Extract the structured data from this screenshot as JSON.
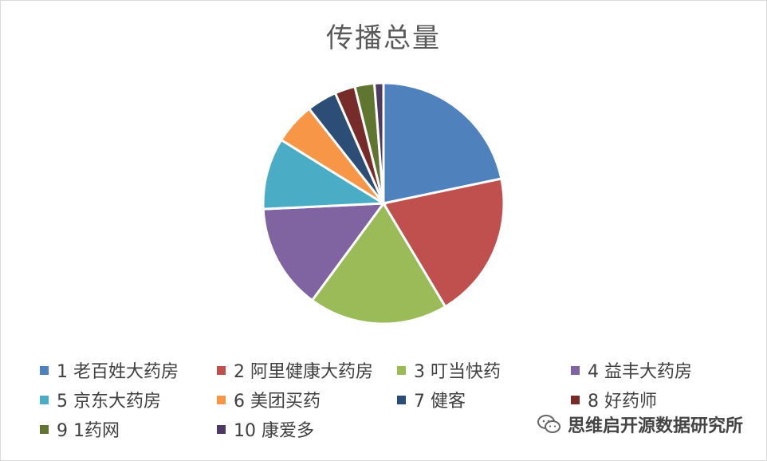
{
  "chart_data": {
    "type": "pie",
    "title": "传播总量",
    "categories": [
      "1 老百姓大药房",
      "2 阿里健康大药房",
      "3 叮当快药",
      "4 益丰大药房",
      "5 京东大药房",
      "6 美团买药",
      "7 健客",
      "8 好药师",
      "9 1药网",
      "10 康爱多"
    ],
    "values": [
      21.5,
      19.5,
      18.5,
      14.0,
      9.5,
      5.5,
      4.0,
      2.7,
      2.6,
      1.2
    ],
    "colors": [
      "#4f81bd",
      "#c0504d",
      "#9bbb59",
      "#8064a2",
      "#4bacc6",
      "#f79646",
      "#2c4d75",
      "#772c2a",
      "#5f7530",
      "#4d3b62"
    ],
    "legend": "bottom"
  },
  "watermark": {
    "text": "思维启开源数据研究所",
    "icon": "wechat-icon"
  }
}
